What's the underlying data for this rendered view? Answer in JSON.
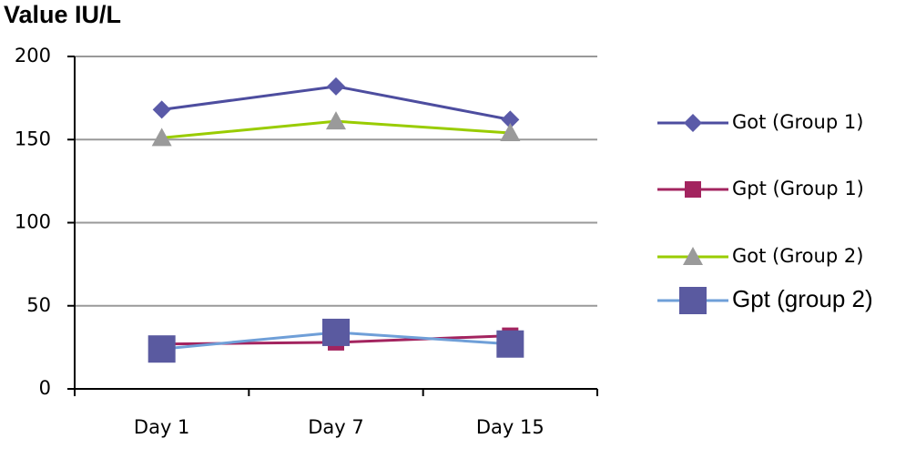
{
  "chart_data": {
    "type": "line",
    "title": "Value IU/L",
    "categories": [
      "Day 1",
      "Day 7",
      "Day 15"
    ],
    "series": [
      {
        "name": "Got (Group 1)",
        "color": "#4d4d9f",
        "marker": "diamond",
        "marker_color": "#5a5aa8",
        "values": [
          168,
          182,
          162
        ]
      },
      {
        "name": "Gpt (Group 1)",
        "color": "#a3245f",
        "marker": "square",
        "marker_color": "#a3245f",
        "values": [
          27,
          28,
          32
        ]
      },
      {
        "name": "Got (Group 2)",
        "color": "#99cc00",
        "marker": "triangle",
        "marker_color": "#9a9a9a",
        "values": [
          151,
          161,
          154
        ]
      },
      {
        "name": "Gpt (group 2)",
        "color": "#6f9fd8",
        "marker": "bigsquare",
        "marker_color": "#5a5aa0",
        "values": [
          24,
          34,
          27
        ]
      }
    ],
    "ylim": [
      0,
      200
    ],
    "yticks": [
      0,
      50,
      100,
      150,
      200
    ],
    "grid": true,
    "legend": "right"
  }
}
